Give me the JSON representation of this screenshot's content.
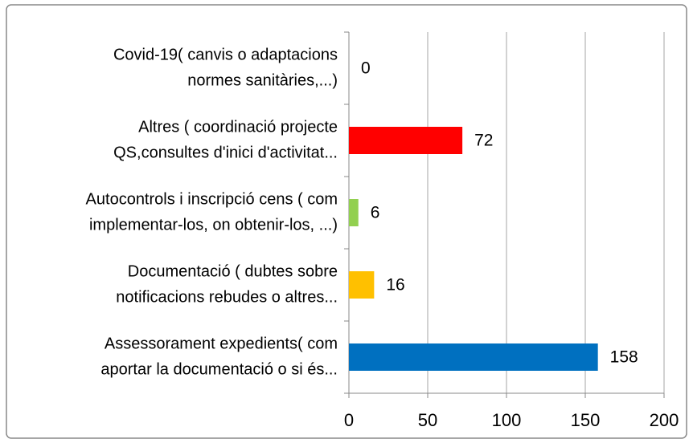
{
  "chart_data": {
    "type": "barh",
    "categories": [
      [
        "Covid-19( canvis o adaptacions",
        "normes sanitàries,...)"
      ],
      [
        "Altres ( coordinació projecte",
        "QS,consultes d'inici d'activitat..."
      ],
      [
        "Autocontrols i inscripció cens ( com",
        "implementar-los, on obtenir-los, ...)"
      ],
      [
        "Documentació ( dubtes sobre",
        "notificacions rebudes o altres..."
      ],
      [
        "Assessorament expedients( com",
        "aportar la documentació o si és..."
      ]
    ],
    "values": [
      0,
      72,
      6,
      16,
      158
    ],
    "colors": [
      "#0070c0",
      "#ff0000",
      "#92d050",
      "#ffc000",
      "#0070c0"
    ],
    "xlim": [
      0,
      200
    ],
    "xticks": [
      0,
      50,
      100,
      150,
      200
    ],
    "grid": true
  }
}
